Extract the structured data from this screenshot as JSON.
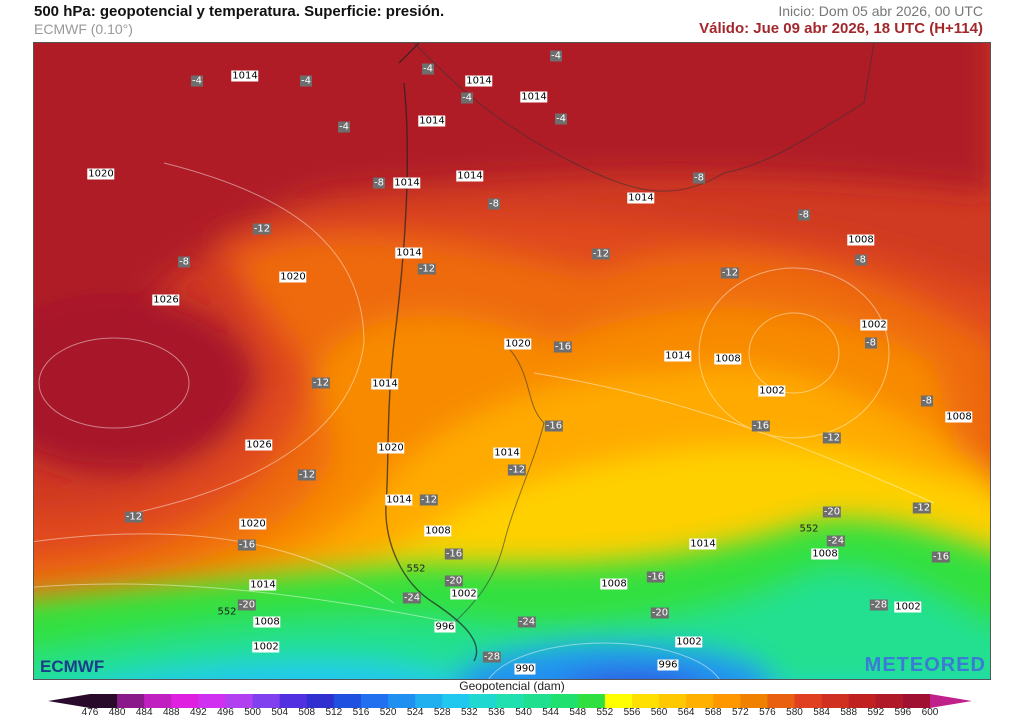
{
  "header": {
    "title": "500 hPa: geopotencial y temperatura. Superficie: presión.",
    "model": "ECMWF (0.10°)",
    "init": "Inicio: Dom 05 abr 2026, 00 UTC",
    "valid": "Válido: Jue 09 abr 2026, 18 UTC (H+114)"
  },
  "map": {
    "region": "South America (southern cone)",
    "pressure_labels_hPa": [
      "1014",
      "1014",
      "1014",
      "1014",
      "1020",
      "1014",
      "1014",
      "1014",
      "1014",
      "1020",
      "1026",
      "1008",
      "1002",
      "1020",
      "1014",
      "1008",
      "1002",
      "1008",
      "1014",
      "1026",
      "1020",
      "1014",
      "1014",
      "1020",
      "1008",
      "1014",
      "1008",
      "1014",
      "1008",
      "1002",
      "1008",
      "996",
      "1002",
      "1002",
      "1002",
      "990",
      "996"
    ],
    "temperature_labels_C": [
      "-4",
      "-4",
      "-4",
      "-4",
      "-4",
      "-4",
      "-4",
      "-8",
      "-8",
      "-8",
      "-8",
      "-8",
      "-8",
      "-12",
      "-12",
      "-12",
      "-12",
      "-16",
      "-8",
      "-12",
      "-8",
      "-16",
      "-16",
      "-12",
      "-12",
      "-12",
      "-12",
      "-16",
      "-12",
      "-20",
      "-24",
      "-12",
      "-16",
      "-16",
      "-16",
      "-20",
      "-24",
      "-28",
      "-20",
      "-24",
      "-20",
      "-28"
    ],
    "contour_labels_dam": [
      "552",
      "552",
      "552"
    ]
  },
  "logos": {
    "left": "ECMWF",
    "right": "METEORED"
  },
  "colorbar": {
    "title": "Geopotencial (dam)",
    "ticks": [
      "476",
      "480",
      "484",
      "488",
      "492",
      "496",
      "500",
      "504",
      "508",
      "512",
      "516",
      "520",
      "524",
      "528",
      "532",
      "536",
      "540",
      "544",
      "548",
      "552",
      "556",
      "560",
      "564",
      "568",
      "572",
      "576",
      "580",
      "584",
      "588",
      "592",
      "596",
      "600"
    ],
    "colors": [
      "#2a0a2a",
      "#8a1a8a",
      "#c020c0",
      "#e020e0",
      "#d030f0",
      "#b040f0",
      "#8040f0",
      "#5030e0",
      "#3030d0",
      "#2050e0",
      "#2070f0",
      "#2090f0",
      "#20b0f0",
      "#20c8f0",
      "#20d8d0",
      "#20e0b0",
      "#20e090",
      "#20e070",
      "#30e040",
      "#ffff00",
      "#ffe000",
      "#ffc800",
      "#ffb000",
      "#ff9800",
      "#f08000",
      "#e86010",
      "#e04020",
      "#d03020",
      "#c02020",
      "#b01a28",
      "#a01030"
    ],
    "low_arrow_color": "#2a0a2a",
    "high_arrow_color": "#c0208a"
  }
}
